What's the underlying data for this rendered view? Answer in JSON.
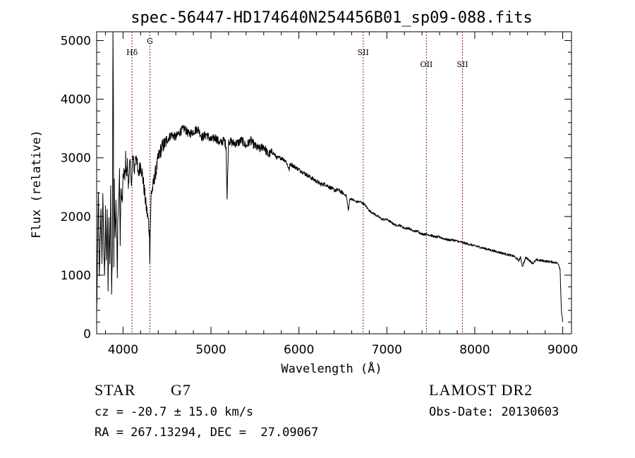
{
  "chart_data": {
    "type": "line",
    "title": "spec-56447-HD174640N254456B01_sp09-088.fits",
    "xlabel": "Wavelength (Å)",
    "ylabel": "Flux (relative)",
    "xlim": [
      3700,
      9100
    ],
    "ylim": [
      0,
      5150
    ],
    "xticks": [
      4000,
      5000,
      6000,
      7000,
      8000,
      9000
    ],
    "yticks": [
      0,
      1000,
      2000,
      3000,
      4000,
      5000
    ],
    "x_tick_labels": [
      "4000",
      "5000",
      "6000",
      "7000",
      "8000",
      "9000"
    ],
    "y_tick_labels": [
      "0",
      "1000",
      "2000",
      "3000",
      "4000",
      "5000"
    ],
    "grid": false,
    "line_color": "#000000",
    "marker_color": "#8b1a1a",
    "spectral_lines": [
      {
        "label": "Hδ",
        "wavelength": 4102
      },
      {
        "label": "G",
        "wavelength": 4305
      },
      {
        "label": "SII",
        "wavelength": 6731
      },
      {
        "label": "OII",
        "wavelength": 7450
      },
      {
        "label": "SII",
        "wavelength": 7860
      }
    ],
    "series": [
      {
        "x": [
          3700,
          3710,
          3720,
          3730,
          3740,
          3750,
          3760,
          3770,
          3780,
          3790,
          3800,
          3810,
          3820,
          3830,
          3840,
          3850,
          3860,
          3870,
          3880,
          3885,
          3890,
          3895,
          3900,
          3910,
          3920,
          3930,
          3935,
          3940,
          3950,
          3960,
          3968,
          3975,
          3990,
          4000,
          4010,
          4020,
          4030,
          4040,
          4050,
          4060,
          4070,
          4080,
          4090,
          4102,
          4110,
          4130,
          4150,
          4170,
          4200,
          4230,
          4260,
          4290,
          4300,
          4305,
          4310,
          4320,
          4340,
          4360,
          4380,
          4400,
          4420,
          4450,
          4480,
          4500,
          4550,
          4600,
          4650,
          4700,
          4750,
          4800,
          4850,
          4900,
          4950,
          5000,
          5050,
          5100,
          5150,
          5172,
          5183,
          5200,
          5250,
          5300,
          5350,
          5400,
          5450,
          5500,
          5550,
          5600,
          5650,
          5700,
          5750,
          5800,
          5850,
          5890,
          5900,
          5950,
          6000,
          6050,
          6100,
          6150,
          6200,
          6250,
          6300,
          6350,
          6400,
          6450,
          6500,
          6540,
          6563,
          6580,
          6600,
          6650,
          6700,
          6750,
          6800,
          6850,
          6900,
          6950,
          7000,
          7050,
          7100,
          7150,
          7200,
          7250,
          7300,
          7350,
          7400,
          7450,
          7500,
          7550,
          7600,
          7650,
          7700,
          7750,
          7800,
          7850,
          7900,
          7950,
          8000,
          8050,
          8100,
          8150,
          8200,
          8250,
          8300,
          8350,
          8400,
          8450,
          8498,
          8520,
          8542,
          8580,
          8600,
          8662,
          8700,
          8750,
          8800,
          8850,
          8900,
          8950,
          8970,
          8985,
          9000
        ],
        "y": [
          300,
          1300,
          2500,
          900,
          1600,
          2200,
          1100,
          2400,
          1500,
          900,
          2100,
          1300,
          2000,
          800,
          1900,
          1100,
          2500,
          700,
          1500,
          5150,
          4000,
          1200,
          2600,
          1700,
          2200,
          1500,
          900,
          1900,
          2300,
          2700,
          1400,
          2500,
          2200,
          2600,
          2800,
          2600,
          3000,
          2700,
          2900,
          2500,
          2800,
          2900,
          2600,
          2700,
          3000,
          2800,
          3100,
          2700,
          2900,
          2600,
          2200,
          1900,
          1700,
          1300,
          1800,
          2400,
          2500,
          2700,
          2800,
          3000,
          3100,
          3200,
          3250,
          3300,
          3400,
          3350,
          3450,
          3500,
          3400,
          3450,
          3500,
          3350,
          3400,
          3300,
          3350,
          3250,
          3300,
          3200,
          2300,
          3300,
          3250,
          3250,
          3300,
          3200,
          3300,
          3200,
          3150,
          3200,
          3050,
          3100,
          3000,
          3000,
          2950,
          2800,
          2900,
          2850,
          2800,
          2750,
          2700,
          2650,
          2600,
          2550,
          2550,
          2500,
          2450,
          2450,
          2400,
          2350,
          2100,
          2300,
          2300,
          2250,
          2250,
          2200,
          2100,
          2050,
          2000,
          1950,
          1950,
          1900,
          1850,
          1850,
          1800,
          1800,
          1750,
          1750,
          1700,
          1700,
          1680,
          1650,
          1650,
          1620,
          1600,
          1600,
          1580,
          1560,
          1540,
          1520,
          1500,
          1480,
          1460,
          1440,
          1420,
          1400,
          1380,
          1360,
          1340,
          1320,
          1250,
          1300,
          1150,
          1300,
          1280,
          1200,
          1260,
          1250,
          1240,
          1230,
          1220,
          1200,
          1100,
          400,
          200
        ]
      }
    ]
  },
  "info": {
    "object_class": "STAR",
    "subclass": "G7",
    "survey": "LAMOST DR2",
    "redshift": "cz = -20.7 ± 15.0 km/s",
    "obs_date": "Obs-Date: 20130603",
    "coords": "RA = 267.13294, DEC =  27.09067"
  }
}
